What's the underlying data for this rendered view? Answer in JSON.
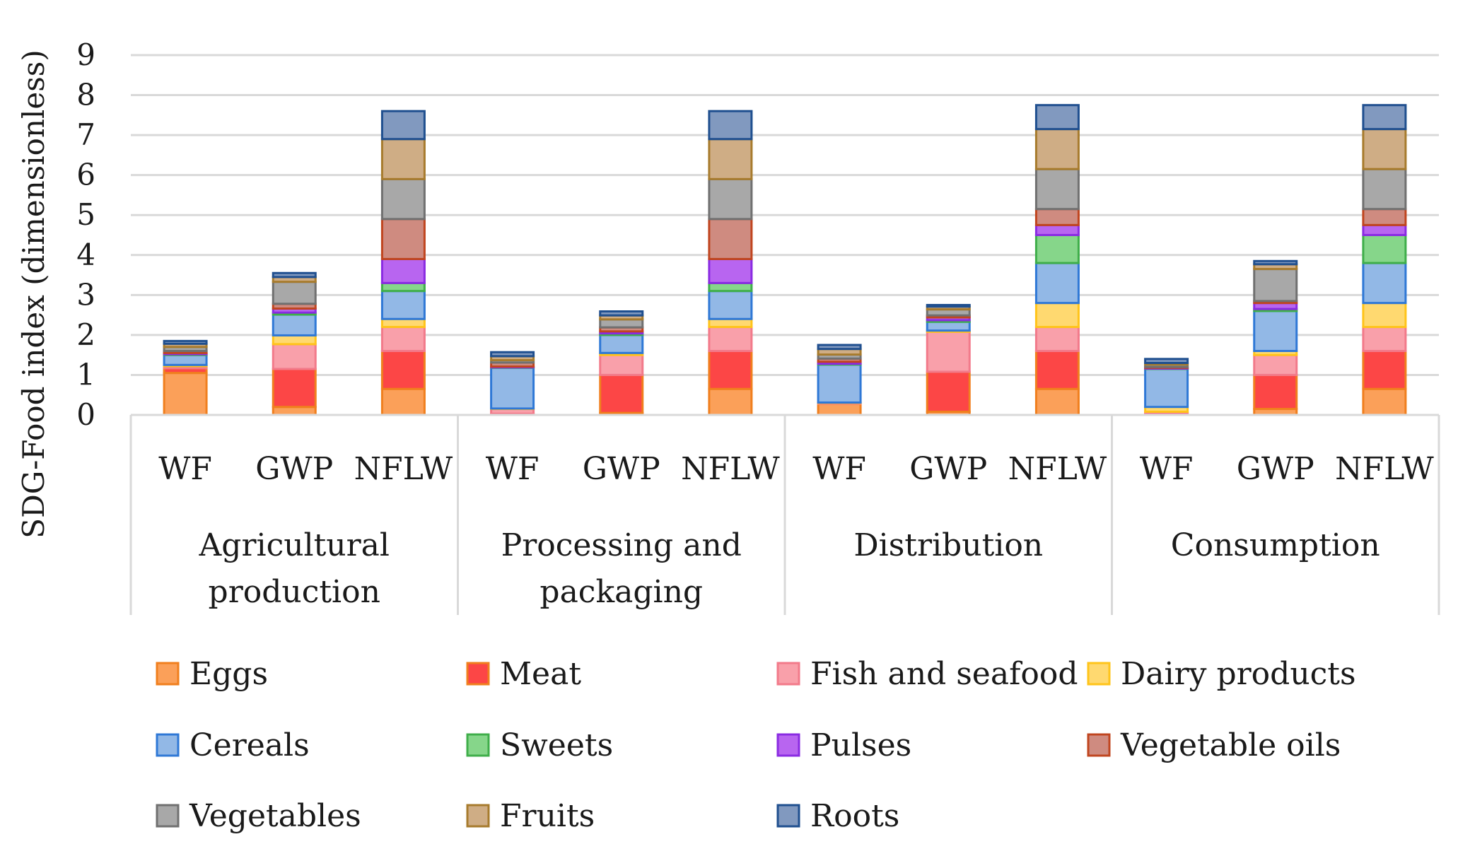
{
  "chart_data": {
    "type": "bar",
    "stacked": true,
    "title": "",
    "xlabel": "",
    "ylabel": "SDG-Food index (dimensionless)",
    "ylim": [
      0,
      9
    ],
    "yticks": [
      "0",
      "1",
      "2",
      "3",
      "4",
      "5",
      "6",
      "7",
      "8",
      "9"
    ],
    "grid": true,
    "legend_position": "bottom",
    "groups": [
      {
        "label_lines": [
          "Agricultural",
          "production"
        ]
      },
      {
        "label_lines": [
          "Processing and",
          "packaging"
        ]
      },
      {
        "label_lines": [
          "Distribution"
        ]
      },
      {
        "label_lines": [
          "Consumption"
        ]
      }
    ],
    "indicators": [
      "WF",
      "GWP",
      "NFLW"
    ],
    "categories": [
      "Agricultural production | WF",
      "Agricultural production | GWP",
      "Agricultural production | NFLW",
      "Processing and packaging | WF",
      "Processing and packaging | GWP",
      "Processing and packaging | NFLW",
      "Distribution | WF",
      "Distribution | GWP",
      "Distribution | NFLW",
      "Consumption | WF",
      "Consumption | GWP",
      "Consumption | NFLW"
    ],
    "series": [
      {
        "name": "Eggs",
        "fill": "#fba059",
        "stroke": "#f07f1e",
        "values": [
          1.05,
          0.2,
          0.65,
          0.0,
          0.05,
          0.65,
          0.28,
          0.08,
          0.65,
          0.05,
          0.15,
          0.65
        ]
      },
      {
        "name": "Meat",
        "fill": "#fc4646",
        "stroke": "#f07f1e",
        "values": [
          0.12,
          0.95,
          0.95,
          0.03,
          0.95,
          0.95,
          0.0,
          1.0,
          0.95,
          0.0,
          0.85,
          0.95
        ]
      },
      {
        "name": "Fish and seafood",
        "fill": "#f9a0aa",
        "stroke": "#f27a8a",
        "values": [
          0.05,
          0.62,
          0.6,
          0.12,
          0.5,
          0.6,
          0.02,
          1.0,
          0.6,
          0.03,
          0.5,
          0.6
        ]
      },
      {
        "name": "Dairy products",
        "fill": "#ffd970",
        "stroke": "#ffc41a",
        "values": [
          0.03,
          0.22,
          0.2,
          0.01,
          0.05,
          0.2,
          0.01,
          0.03,
          0.6,
          0.12,
          0.1,
          0.6
        ]
      },
      {
        "name": "Cereals",
        "fill": "#92b8e6",
        "stroke": "#2f78d6",
        "values": [
          0.25,
          0.52,
          0.7,
          1.02,
          0.45,
          0.7,
          0.95,
          0.22,
          1.0,
          0.95,
          1.0,
          1.0
        ]
      },
      {
        "name": "Sweets",
        "fill": "#86d68a",
        "stroke": "#3fae4a",
        "values": [
          0.02,
          0.05,
          0.2,
          0.01,
          0.04,
          0.2,
          0.02,
          0.04,
          0.7,
          0.01,
          0.05,
          0.7
        ]
      },
      {
        "name": "Pulses",
        "fill": "#b865f0",
        "stroke": "#8a2be2",
        "values": [
          0.03,
          0.1,
          0.6,
          0.02,
          0.05,
          0.6,
          0.05,
          0.07,
          0.25,
          0.02,
          0.15,
          0.25
        ]
      },
      {
        "name": "Vegetable oils",
        "fill": "#cf8b80",
        "stroke": "#c0451f",
        "values": [
          0.05,
          0.12,
          1.0,
          0.1,
          0.1,
          1.0,
          0.08,
          0.05,
          0.4,
          0.02,
          0.05,
          0.4
        ]
      },
      {
        "name": "Vegetables",
        "fill": "#a8a8a8",
        "stroke": "#707070",
        "values": [
          0.1,
          0.55,
          1.0,
          0.06,
          0.2,
          1.0,
          0.1,
          0.15,
          1.0,
          0.06,
          0.8,
          1.0
        ]
      },
      {
        "name": "Fruits",
        "fill": "#cfad85",
        "stroke": "#a77b2d",
        "values": [
          0.08,
          0.12,
          1.0,
          0.1,
          0.1,
          1.0,
          0.14,
          0.07,
          1.0,
          0.04,
          0.12,
          1.0
        ]
      },
      {
        "name": "Roots",
        "fill": "#8199bf",
        "stroke": "#1f4f8f",
        "values": [
          0.07,
          0.1,
          0.7,
          0.1,
          0.1,
          0.7,
          0.1,
          0.04,
          0.6,
          0.1,
          0.08,
          0.6
        ]
      }
    ]
  }
}
